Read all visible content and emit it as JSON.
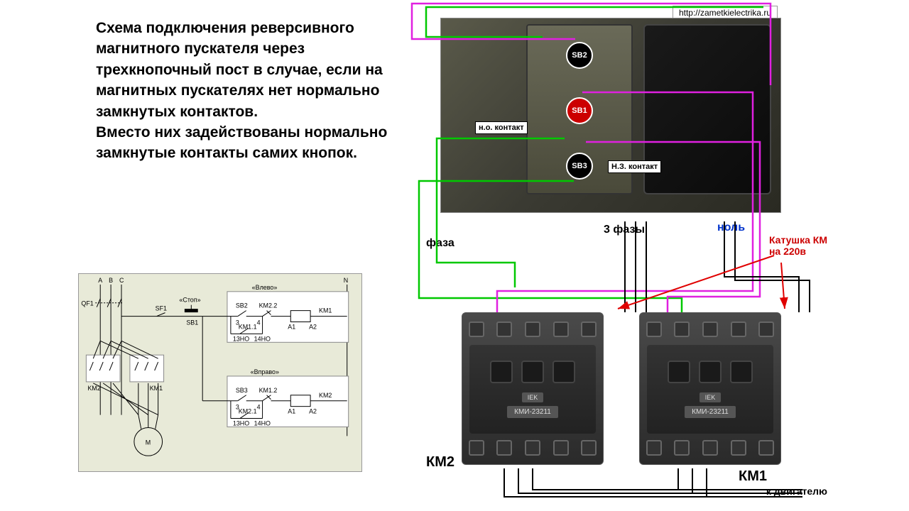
{
  "text": {
    "main": "Схема подключения реверсивного магнитного пускателя через трехкнопочный пост в случае, если на магнитных пускателях нет нормально замкнутых контактов.\nВместо них задействованы нормально замкнутые контакты самих кнопок.",
    "url": "http://zametkielectrika.ru"
  },
  "buttons": {
    "sb2": "SB2",
    "sb1": "SB1",
    "sb3": "SB3"
  },
  "contact_labels": {
    "no": "н.о.\nконтакт",
    "nc": "Н.З.\nконтакт"
  },
  "field_labels": {
    "phase": "фаза",
    "three_phase": "3 фазы",
    "neutral": "ноль",
    "coil": "Катушка КМ\nна 220в",
    "km1": "КМ1",
    "km2": "КМ2",
    "to_motor": "к двигателю"
  },
  "contactor": {
    "brand": "IEK",
    "model": "КМИ-23211"
  },
  "colors": {
    "bg": "#ffffff",
    "text": "#000000",
    "neutral_label": "#0033cc",
    "coil_text": "#cc0000",
    "wire_green": "#00c800",
    "wire_magenta": "#e020e0",
    "wire_black": "#000000",
    "wire_red": "#e00000",
    "arrow_red": "#e00000",
    "schematic_bg": "#e8ead8"
  },
  "schematic": {
    "labels": {
      "a": "A",
      "b": "B",
      "c": "C",
      "n": "N",
      "qf1": "QF1",
      "sf1": "SF1",
      "stop": "«Стоп»",
      "left": "«Влево»",
      "right": "«Вправо»",
      "sb1": "SB1",
      "sb2": "SB2",
      "sb3": "SB3",
      "km1": "KM1",
      "km2": "KM2",
      "km11": "KM1.1",
      "km12": "KM1.2",
      "km21": "KM2.1",
      "km22": "KM2.2",
      "a1": "A1",
      "a2": "A2",
      "m": "M",
      "no13": "13НО",
      "no14": "14НО",
      "terminals": [
        "1",
        "2",
        "3",
        "4"
      ]
    },
    "line_color": "#000000",
    "font_size": 9
  },
  "wires": {
    "green": [
      "M 764 52 L 600 52 L 600 10 L 1075 10",
      "M 795 195 L 615 195 L 615 370 L 725 370 L 725 405",
      "M 808 255 L 590 255 L 590 420 L 960 420 L 960 440"
    ],
    "magenta": [
      "M 810 55 L 580 55 L 580 5 L 1085 5 L 1085 120",
      "M 820 130 L 1060 130 L 1060 410 L 700 410 L 700 440",
      "M 825 200 L 1070 200 L 1070 418 L 940 418 L 940 440"
    ],
    "black_bundle": [
      "M 880 312 L 880 440",
      "M 895 312 L 895 440",
      "M 910 312 L 910 440",
      "M 1020 312 L 1020 390 L 1125 390 L 1125 440",
      "M 1035 312 L 1035 395 L 1140 395 L 1140 440",
      "M 710 660 L 710 700 L 1130 700",
      "M 730 660 L 730 695 L 1130 695",
      "M 750 660 L 750 690 L 1130 690",
      "M 955 660 L 955 690",
      "M 975 660 L 975 695",
      "M 995 660 L 995 700"
    ],
    "red_arrows": [
      "M 1090 360 L 870 435",
      "M 1100 370 L 1105 435"
    ]
  }
}
